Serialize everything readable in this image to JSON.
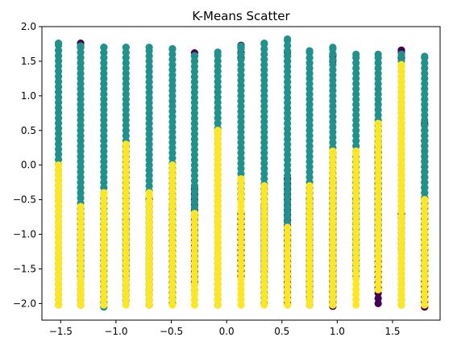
{
  "chart_data": {
    "type": "scatter",
    "title": "K-Means Scatter",
    "xlabel": "",
    "ylabel": "",
    "xlim": [
      -1.67,
      1.93
    ],
    "ylim": [
      -2.24,
      2.0
    ],
    "x_ticks": [
      -1.5,
      -1.0,
      -0.5,
      0.0,
      0.5,
      1.0,
      1.5
    ],
    "x_tick_labels": [
      "−1.5",
      "−1.0",
      "−0.5",
      "0.0",
      "0.5",
      "1.0",
      "1.5"
    ],
    "y_ticks": [
      -2.0,
      -1.5,
      -1.0,
      -0.5,
      0.0,
      0.5,
      1.0,
      1.5,
      2.0
    ],
    "y_tick_labels": [
      "−2.0",
      "−1.5",
      "−1.0",
      "−0.5",
      "0.0",
      "0.5",
      "1.0",
      "1.5",
      "2.0"
    ],
    "grid": false,
    "legend": "none",
    "cluster_colors": [
      "#440154",
      "#21918c",
      "#fde725"
    ],
    "x_columns": [
      -1.52,
      -1.32,
      -1.11,
      -0.91,
      -0.7,
      -0.49,
      -0.29,
      -0.08,
      0.13,
      0.34,
      0.55,
      0.75,
      0.96,
      1.17,
      1.37,
      1.58,
      1.79
    ],
    "series": [
      {
        "cluster": 0,
        "color": "#440154",
        "segments": [
          [
            -1.32,
            -2.02,
            -1.2
          ],
          [
            -1.32,
            1.7,
            1.76
          ],
          [
            -0.91,
            -1.95,
            -0.8
          ],
          [
            -0.7,
            -2.02,
            -0.5
          ],
          [
            -0.49,
            -2.0,
            -0.6
          ],
          [
            -0.29,
            -1.7,
            -0.3
          ],
          [
            -0.29,
            1.5,
            1.62
          ],
          [
            0.13,
            -1.6,
            -0.7
          ],
          [
            0.13,
            1.55,
            1.73
          ],
          [
            0.34,
            -1.5,
            -0.6
          ],
          [
            0.55,
            -2.0,
            -0.2
          ],
          [
            0.55,
            1.5,
            1.63
          ],
          [
            0.75,
            -2.02,
            -0.5
          ],
          [
            0.96,
            -2.04,
            -0.2
          ],
          [
            0.96,
            1.5,
            1.6
          ],
          [
            1.17,
            -1.5,
            -0.5
          ],
          [
            1.37,
            -2.0,
            0.3
          ],
          [
            1.58,
            -1.2,
            -0.7
          ],
          [
            1.58,
            1.55,
            1.66
          ],
          [
            1.79,
            -2.05,
            0.6
          ]
        ]
      },
      {
        "cluster": 1,
        "color": "#21918c",
        "segments": [
          [
            -1.52,
            -2.02,
            1.76
          ],
          [
            -1.32,
            -1.6,
            1.72
          ],
          [
            -1.11,
            -2.05,
            1.7
          ],
          [
            -0.91,
            -1.6,
            1.7
          ],
          [
            -0.7,
            -1.8,
            1.7
          ],
          [
            -0.49,
            -2.0,
            1.68
          ],
          [
            -0.29,
            -1.8,
            1.58
          ],
          [
            -0.08,
            -2.02,
            1.63
          ],
          [
            0.13,
            -0.5,
            1.72
          ],
          [
            0.34,
            -2.0,
            1.76
          ],
          [
            0.55,
            -1.8,
            1.82
          ],
          [
            0.75,
            -1.9,
            1.65
          ],
          [
            0.96,
            -2.0,
            1.7
          ],
          [
            1.17,
            -1.6,
            1.6
          ],
          [
            1.37,
            -1.3,
            1.6
          ],
          [
            1.58,
            -2.02,
            1.6
          ],
          [
            1.79,
            -1.6,
            1.57
          ]
        ]
      },
      {
        "cluster": 2,
        "color": "#fde725",
        "segments": [
          [
            -1.52,
            -2.02,
            0.0
          ],
          [
            -1.32,
            -2.02,
            -0.6
          ],
          [
            -1.11,
            -2.02,
            -0.4
          ],
          [
            -0.91,
            -2.02,
            0.3
          ],
          [
            -0.7,
            -2.02,
            -0.4
          ],
          [
            -0.49,
            -2.02,
            0.0
          ],
          [
            -0.29,
            -2.02,
            -0.7
          ],
          [
            -0.08,
            -2.02,
            0.5
          ],
          [
            0.13,
            -2.02,
            -0.2
          ],
          [
            0.34,
            -2.02,
            -0.3
          ],
          [
            0.55,
            -2.02,
            -0.9
          ],
          [
            0.75,
            -2.02,
            -0.3
          ],
          [
            0.96,
            -2.02,
            0.2
          ],
          [
            1.17,
            -2.02,
            0.2
          ],
          [
            1.37,
            -1.8,
            0.6
          ],
          [
            1.58,
            -2.02,
            1.45
          ],
          [
            1.79,
            -2.02,
            -0.5
          ]
        ]
      }
    ]
  }
}
